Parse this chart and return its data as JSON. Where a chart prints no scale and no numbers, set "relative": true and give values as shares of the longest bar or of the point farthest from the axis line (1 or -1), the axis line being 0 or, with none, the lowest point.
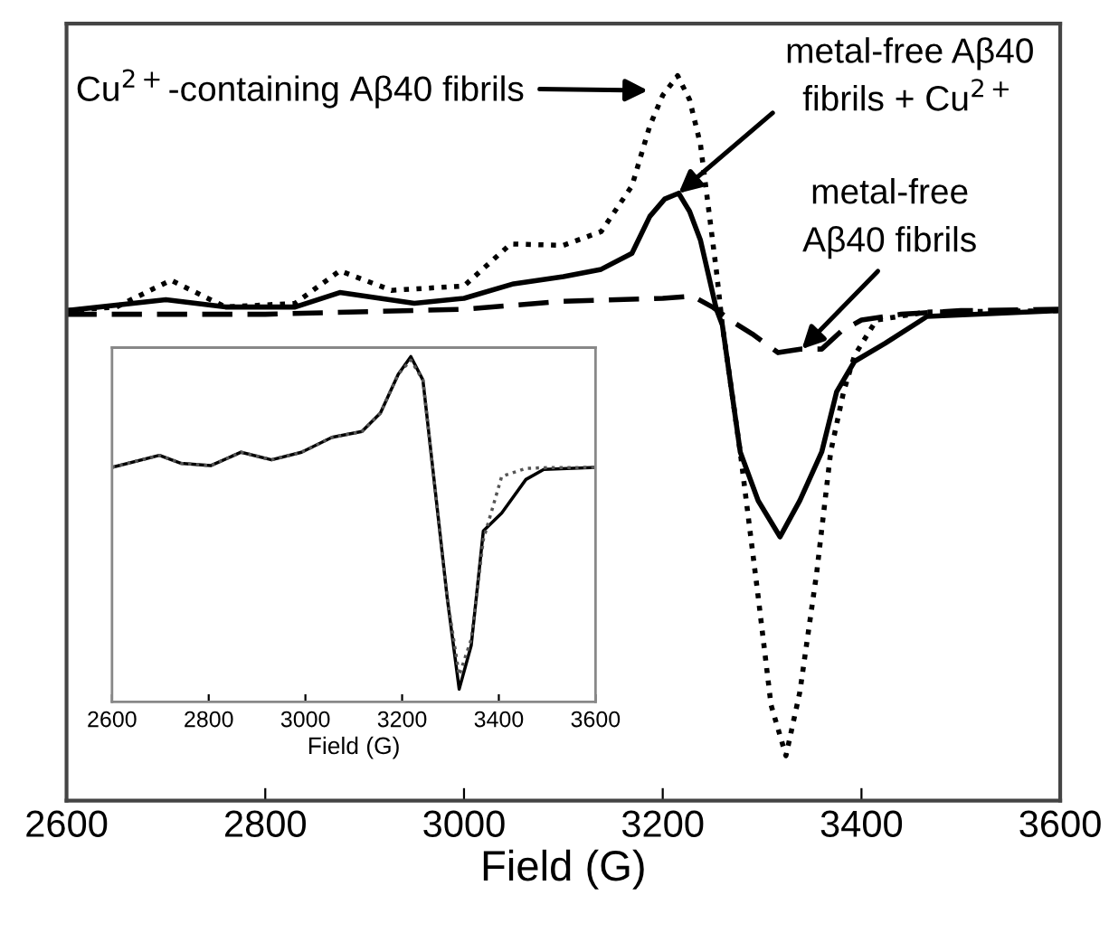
{
  "chart_data": [
    {
      "type": "line",
      "relative": true,
      "xlabel": "Field (G)",
      "xlim": [
        2600,
        3600
      ],
      "xticks": [
        2600,
        2800,
        3000,
        3200,
        3400,
        3600
      ],
      "grid": false,
      "legend": false,
      "marker": "none",
      "series": [
        {
          "color": "#000000",
          "line_style": "dotted",
          "x": [
            2600,
            2650,
            2705,
            2760,
            2830,
            2875,
            2927,
            3000,
            3047,
            3100,
            3138,
            3169,
            3187,
            3200,
            3215,
            3227,
            3238,
            3254,
            3260,
            3278,
            3296,
            3309,
            3324,
            3338,
            3355,
            3369,
            3382,
            3393,
            3415,
            3465,
            3600
          ],
          "values": [
            0.676,
            0.681,
            0.718,
            0.681,
            0.686,
            0.731,
            0.704,
            0.71,
            0.768,
            0.766,
            0.785,
            0.848,
            0.931,
            0.973,
            1,
            0.967,
            0.905,
            0.731,
            0.656,
            0.481,
            0.282,
            0.132,
            0.062,
            0.15,
            0.315,
            0.481,
            0.564,
            0.614,
            0.663,
            0.674,
            0.676
          ]
        },
        {
          "color": "#000000",
          "line_style": "solid",
          "x": [
            2600,
            2700,
            2760,
            2830,
            2875,
            2950,
            3000,
            3050,
            3100,
            3138,
            3169,
            3187,
            3202,
            3216,
            3227,
            3238,
            3254,
            3260,
            3278,
            3296,
            3318,
            3338,
            3360,
            3375,
            3393,
            3424,
            3466,
            3600
          ],
          "values": [
            0.676,
            0.691,
            0.681,
            0.681,
            0.701,
            0.686,
            0.693,
            0.713,
            0.723,
            0.733,
            0.755,
            0.806,
            0.83,
            0.838,
            0.813,
            0.773,
            0.678,
            0.656,
            0.481,
            0.414,
            0.364,
            0.414,
            0.481,
            0.564,
            0.606,
            0.631,
            0.668,
            0.676
          ]
        },
        {
          "color": "#000000",
          "line_style": "dashed",
          "x": [
            2600,
            2800,
            3000,
            3100,
            3200,
            3230,
            3250,
            3270,
            3290,
            3316,
            3340,
            3360,
            3380,
            3400,
            3440,
            3500,
            3600
          ],
          "values": [
            0.671,
            0.671,
            0.678,
            0.689,
            0.693,
            0.696,
            0.681,
            0.661,
            0.644,
            0.618,
            0.623,
            0.623,
            0.648,
            0.663,
            0.671,
            0.676,
            0.678
          ]
        }
      ],
      "annotations": [
        "Cu$^{2+}$-containing Aβ40 fibrils",
        {
          "text": "metal-free Aβ40\nfibrils + Cu$^{2+}$",
          "x": 3216,
          "y": 0.838
        },
        {
          "text": "metal-free\nAβ40 fibrils",
          "x": 3340,
          "y": 0.623
        }
      ]
    },
    {
      "type": "line",
      "relative": true,
      "xlabel": "Field (G)",
      "xlim": [
        2600,
        3600
      ],
      "xticks": [
        2600,
        2800,
        3000,
        3200,
        3400,
        3600
      ],
      "grid": false,
      "legend": false,
      "marker": "none",
      "series": [
        {
          "color": "#000000",
          "line_style": "solid",
          "x": [
            2600,
            2698,
            2742,
            2804,
            2867,
            2930,
            2992,
            3055,
            3117,
            3155,
            3192,
            3218,
            3243,
            3268,
            3293,
            3318,
            3343,
            3368,
            3406,
            3456,
            3493,
            3600
          ],
          "values": [
            0.679,
            0.714,
            0.691,
            0.684,
            0.723,
            0.701,
            0.723,
            0.766,
            0.783,
            0.836,
            0.949,
            1,
            0.932,
            0.618,
            0.304,
            0.037,
            0.164,
            0.495,
            0.547,
            0.644,
            0.673,
            0.679
          ]
        },
        {
          "color": "#555555",
          "line_style": "dotted",
          "x": [
            2600,
            2698,
            2742,
            2804,
            2867,
            2930,
            2992,
            3055,
            3117,
            3155,
            3192,
            3218,
            3243,
            3268,
            3293,
            3318,
            3343,
            3368,
            3406,
            3456,
            3493,
            3600
          ],
          "values": [
            0.679,
            0.714,
            0.691,
            0.684,
            0.723,
            0.701,
            0.723,
            0.766,
            0.783,
            0.836,
            0.949,
            0.99,
            0.932,
            0.618,
            0.304,
            0.077,
            0.181,
            0.47,
            0.653,
            0.676,
            0.678,
            0.679
          ]
        }
      ]
    }
  ]
}
